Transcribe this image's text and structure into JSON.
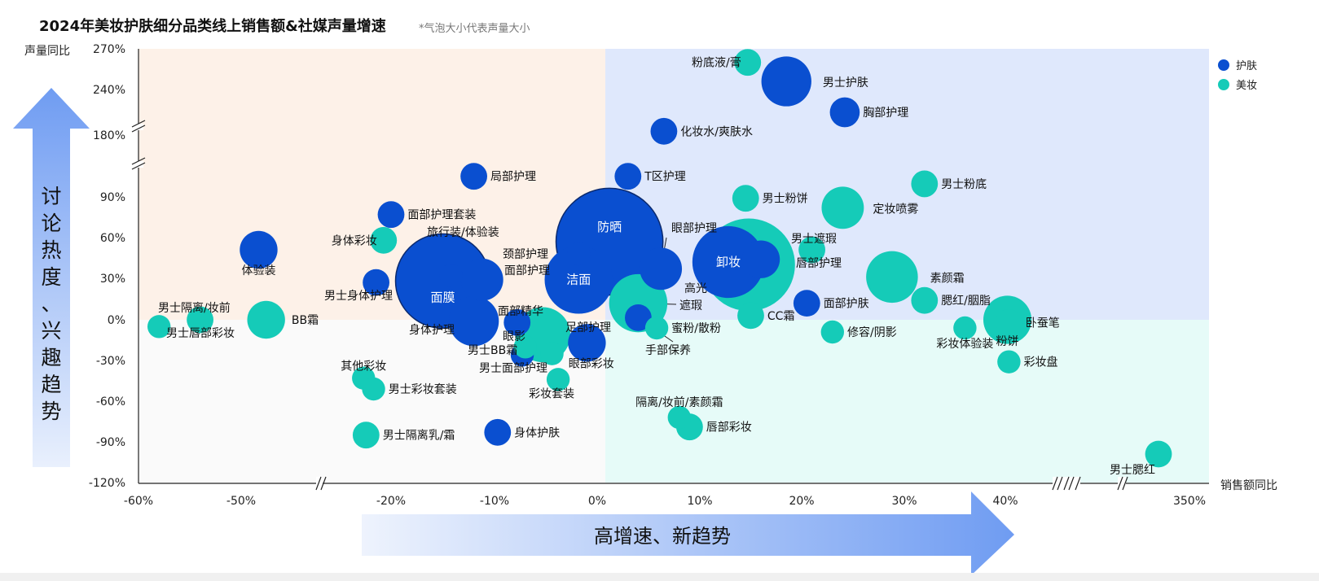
{
  "header": {
    "title": "2024年美妆护肤细分品类线上销售额&社媒声量增速",
    "subtitle": "*气泡大小代表声量大小"
  },
  "arrows": {
    "vertical_label": "讨论热度、兴趣趋势",
    "horizontal_label": "高增速、新趋势"
  },
  "colors": {
    "skincare": "#0a4fd0",
    "makeup": "#15cbb8",
    "quad_top_left": "#fdf1e8",
    "quad_top_right": "#dfe8fc",
    "quad_bottom_left": "#fafafa",
    "quad_bottom_right": "#e6fbf8",
    "arrow": "#6f9cf2"
  },
  "chart_data": {
    "type": "scatter",
    "xlabel": "销售额同比",
    "ylabel": "声量同比",
    "x_ticks": [
      "-60%",
      "-50%",
      "-20%",
      "-10%",
      "0%",
      "10%",
      "20%",
      "30%",
      "40%",
      "350%"
    ],
    "y_ticks": [
      "270%",
      "240%",
      "180%",
      "90%",
      "60%",
      "30%",
      "0%",
      "-30%",
      "-60%",
      "-90%",
      "-120%"
    ],
    "x_breaks": [
      "-50%~-20%",
      "40%~350%"
    ],
    "y_breaks": [
      "90%~180%",
      "180%~240%"
    ],
    "legend": {
      "position": "top-right",
      "entries": [
        "护肤",
        "美妆"
      ]
    },
    "series": [
      {
        "name": "护肤",
        "points": [
          {
            "label": "男士护肤",
            "x": 18.5,
            "y": 246,
            "size": 14
          },
          {
            "label": "胸部护理",
            "x": 24.2,
            "y": 210,
            "size": 5
          },
          {
            "label": "化妆水/爽肤水",
            "x": 6.5,
            "y": 185,
            "size": 4
          },
          {
            "label": "T区护理",
            "x": 3.0,
            "y": 120,
            "size": 4
          },
          {
            "label": "局部护理",
            "x": -12,
            "y": 120,
            "size": 4
          },
          {
            "label": "面部护理套装",
            "x": -20,
            "y": 77,
            "size": 4
          },
          {
            "label": "体验装",
            "x": -46.5,
            "y": 51,
            "size": 8
          },
          {
            "label": "旅行装/体验装",
            "x": -14.2,
            "y": 32,
            "size": 3
          },
          {
            "label": "面膜",
            "x": -15,
            "y": 28,
            "size": 50
          },
          {
            "label": "面部护理",
            "x": -11.2,
            "y": 29,
            "size": 10
          },
          {
            "label": "颈部护理",
            "x": -1.8,
            "y": 48,
            "size": 3
          },
          {
            "label": "防晒",
            "x": 1.2,
            "y": 57,
            "size": 64
          },
          {
            "label": "洁面",
            "x": -1.8,
            "y": 29,
            "size": 26
          },
          {
            "label": "眼部护理",
            "x": 6.2,
            "y": 37,
            "size": 10
          },
          {
            "label": "卸妆",
            "x": 12.8,
            "y": 42,
            "size": 29
          },
          {
            "label": "唇部护理",
            "x": 16,
            "y": 44,
            "size": 8
          },
          {
            "label": "男士身体护理",
            "x": -23,
            "y": 27,
            "size": 4
          },
          {
            "label": "面部护肤",
            "x": 20.5,
            "y": 12,
            "size": 4
          },
          {
            "label": "身体护理",
            "x": -12,
            "y": -1,
            "size": 14
          },
          {
            "label": "面部精华",
            "x": -7.8,
            "y": -2,
            "size": 4
          },
          {
            "label": "足部护理",
            "x": -1,
            "y": -17,
            "size": 8
          },
          {
            "label": "手部保养",
            "x": 4,
            "y": 1.5,
            "size": 4
          },
          {
            "label": "男士面部护理",
            "x": -7.3,
            "y": -26,
            "size": 3
          },
          {
            "label": "身体护肤",
            "x": -9.7,
            "y": -83,
            "size": 4
          }
        ]
      },
      {
        "name": "美妆",
        "points": [
          {
            "label": "粉底液/膏",
            "x": 14.7,
            "y": 260,
            "size": 4
          },
          {
            "label": "男士粉底",
            "x": 32,
            "y": 109,
            "size": 4
          },
          {
            "label": "男士粉饼",
            "x": 14.5,
            "y": 89,
            "size": 4
          },
          {
            "label": "定妆喷雾",
            "x": 24,
            "y": 82,
            "size": 10
          },
          {
            "label": "身体彩妆",
            "x": -21.5,
            "y": 58,
            "size": 4
          },
          {
            "label": "男士遮瑕",
            "x": 21,
            "y": 51,
            "size": 4
          },
          {
            "label": "高光",
            "x": 14.8,
            "y": 40,
            "size": 48
          },
          {
            "label": "素颜霜",
            "x": 28.8,
            "y": 31,
            "size": 15
          },
          {
            "label": "遮瑕",
            "x": 4,
            "y": 12,
            "size": 19
          },
          {
            "label": "腮红/胭脂",
            "x": 32,
            "y": 14,
            "size": 4
          },
          {
            "label": "CC霜",
            "x": 15,
            "y": 3,
            "size": 4
          },
          {
            "label": "BB霜",
            "x": -45,
            "y": 0,
            "size": 8
          },
          {
            "label": "男士隔离/妆前",
            "x": -54,
            "y": 0,
            "size": 4
          },
          {
            "label": "男士唇部彩妆",
            "x": -58,
            "y": -5,
            "size": 3
          },
          {
            "label": "粉饼",
            "x": 43.5,
            "y": 0,
            "size": 13
          },
          {
            "label": "卧蚕笔",
            "x": 46,
            "y": -2,
            "size": 4
          },
          {
            "label": "蜜粉/散粉",
            "x": 5.8,
            "y": -6,
            "size": 3
          },
          {
            "label": "修容/阴影",
            "x": 23,
            "y": -9,
            "size": 3
          },
          {
            "label": "彩妆体验装",
            "x": 36,
            "y": -6,
            "size": 3
          },
          {
            "label": "眼影",
            "x": -5.3,
            "y": -11,
            "size": 17
          },
          {
            "label": "男士BB霜",
            "x": -7,
            "y": -20,
            "size": 3
          },
          {
            "label": "眼部彩妆",
            "x": -4.4,
            "y": -25,
            "size": 3
          },
          {
            "label": "彩妆盘",
            "x": 46,
            "y": -31,
            "size": 3
          },
          {
            "label": "其他彩妆",
            "x": -25.5,
            "y": -43,
            "size": 3
          },
          {
            "label": "男士彩妆套装",
            "x": -23.5,
            "y": -51,
            "size": 3
          },
          {
            "label": "彩妆套装",
            "x": -3.8,
            "y": -44,
            "size": 3
          },
          {
            "label": "隔离/妆前/素颜霜",
            "x": 8,
            "y": -72,
            "size": 3
          },
          {
            "label": "唇部彩妆",
            "x": 9,
            "y": -79,
            "size": 4
          },
          {
            "label": "男士隔离乳/霜",
            "x": -25,
            "y": -85,
            "size": 4
          },
          {
            "label": "男士腮红",
            "x": 330,
            "y": -99,
            "size": 4
          }
        ]
      }
    ]
  }
}
